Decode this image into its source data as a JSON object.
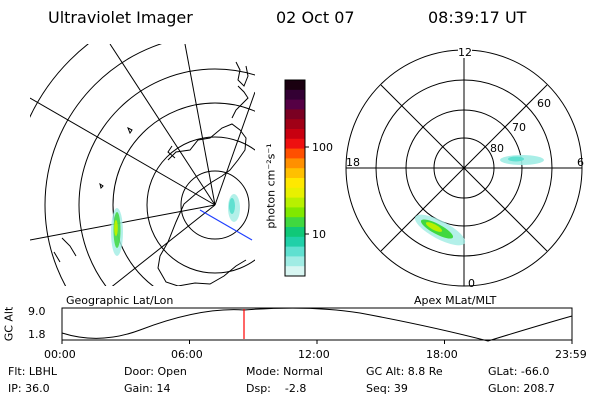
{
  "header": {
    "title": "Ultraviolet Imager",
    "date": "02 Oct 07",
    "time": "08:39:17 UT"
  },
  "colorbar": {
    "unit_label": "photon cm⁻²s⁻¹",
    "ticks": [
      "100",
      "10"
    ],
    "colors": [
      "#1a0010",
      "#330033",
      "#550044",
      "#7a0022",
      "#a00016",
      "#c80010",
      "#ee1010",
      "#ff5000",
      "#ff9000",
      "#ffc000",
      "#ffe800",
      "#e8f000",
      "#b8f000",
      "#80e800",
      "#40d840",
      "#10c878",
      "#20d0a8",
      "#60e0d0",
      "#a0ece4",
      "#d8f6f2"
    ]
  },
  "left_map": {
    "caption": "Geographic Lat/Lon"
  },
  "right_map": {
    "caption": "Apex MLat/MLT",
    "mlt_labels": {
      "top": "12",
      "left": "18",
      "right": "6",
      "bottom": "0"
    },
    "lat_labels": [
      "60",
      "70",
      "80"
    ]
  },
  "timeline": {
    "axis_title": "GC Alt",
    "y_ticks": [
      "9.0",
      "1.8"
    ],
    "x_ticks": [
      "00:00",
      "06:00",
      "12:00",
      "18:00",
      "23:59"
    ],
    "marker_color": "#ff0000"
  },
  "footer": {
    "col1": [
      "Flt: LBHL",
      "IP: 36.0"
    ],
    "col2": [
      "Door: Open",
      "Gain: 14"
    ],
    "col3": [
      "Mode: Normal",
      "Dsp:    -2.8"
    ],
    "col4": [
      "GC Alt: 8.8 Re",
      "Seq: 39"
    ],
    "col5": [
      "GLat: -66.0",
      "GLon: 208.7"
    ]
  }
}
